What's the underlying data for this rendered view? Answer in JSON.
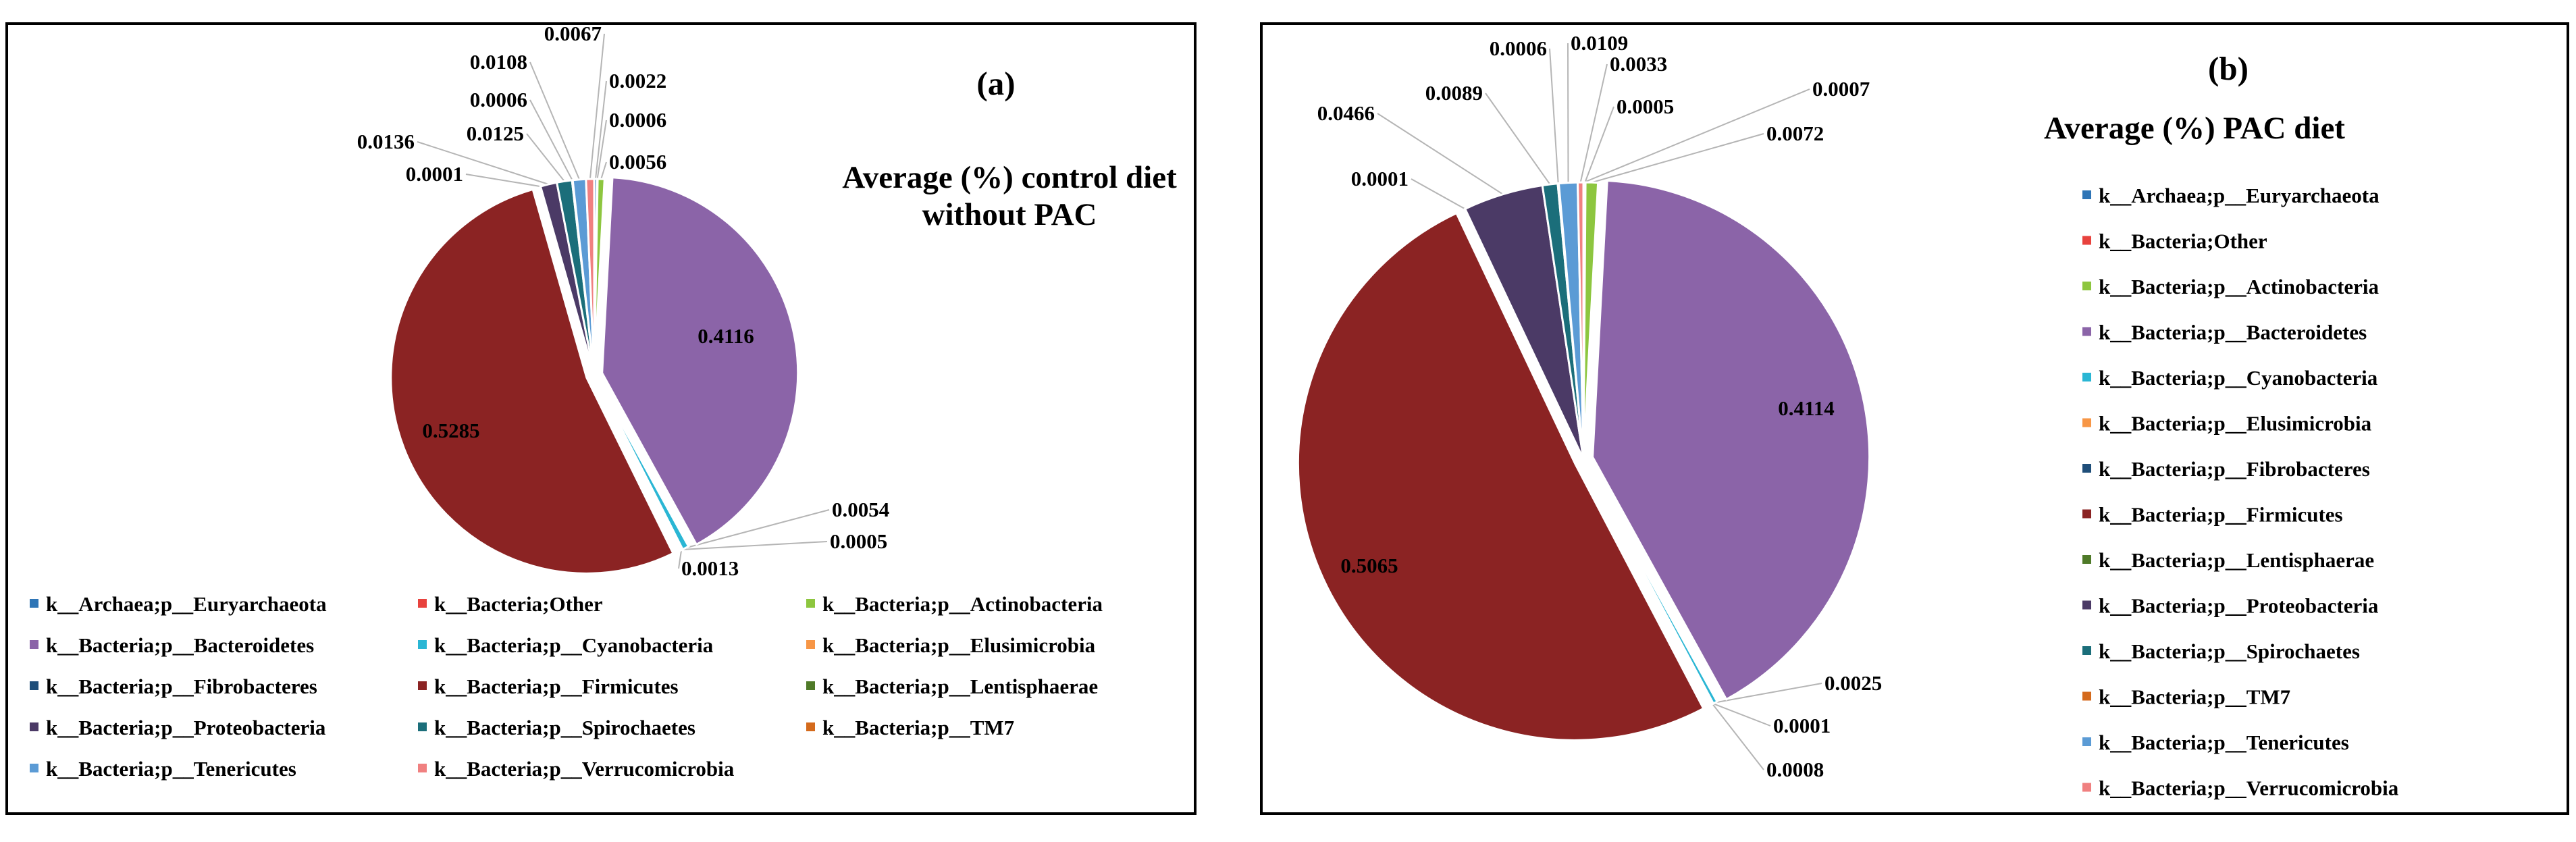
{
  "chart_data": [
    {
      "type": "pie",
      "panel_label": "(a)",
      "title": [
        "Average (%) control diet",
        "without PAC"
      ],
      "slices": [
        {
          "label": "k__Archaea;p__Euryarchaeota",
          "value": 0.0022,
          "display": "0.0022",
          "color": "#2e75b6"
        },
        {
          "label": "k__Bacteria;Other",
          "value": 0.0006,
          "display": "0.0006",
          "color": "#e8423d"
        },
        {
          "label": "k__Bacteria;p__Actinobacteria",
          "value": 0.0056,
          "display": "0.0056",
          "color": "#8dc63f"
        },
        {
          "label": "k__Bacteria;p__Bacteroidetes",
          "value": 0.4116,
          "display": "0.4116",
          "color": "#8b64a8"
        },
        {
          "label": "k__Bacteria;p__Cyanobacteria",
          "value": 0.0054,
          "display": "0.0054",
          "color": "#2ab6d4"
        },
        {
          "label": "k__Bacteria;p__Elusimicrobia",
          "value": 0.0005,
          "display": "0.0005",
          "color": "#f79646"
        },
        {
          "label": "k__Bacteria;p__Fibrobacteres",
          "value": 0.0013,
          "display": "0.0013",
          "color": "#1f4e79"
        },
        {
          "label": "k__Bacteria;p__Firmicutes",
          "value": 0.5285,
          "display": "0.5285",
          "color": "#8b2323"
        },
        {
          "label": "k__Bacteria;p__Lentisphaerae",
          "value": 0.0001,
          "display": "0.0001",
          "color": "#4f7a28"
        },
        {
          "label": "k__Bacteria;p__Proteobacteria",
          "value": 0.0136,
          "display": "0.0136",
          "color": "#4b3a66"
        },
        {
          "label": "k__Bacteria;p__Spirochaetes",
          "value": 0.0125,
          "display": "0.0125",
          "color": "#1b6e7a"
        },
        {
          "label": "k__Bacteria;p__TM7",
          "value": 0.0006,
          "display": "0.0006",
          "color": "#d46a1c"
        },
        {
          "label": "k__Bacteria;p__Tenericutes",
          "value": 0.0108,
          "display": "0.0108",
          "color": "#5b9bd5"
        },
        {
          "label": "k__Bacteria;p__Verrucomicrobia",
          "value": 0.0067,
          "display": "0.0067",
          "color": "#f08080"
        }
      ],
      "legend_position": "bottom"
    },
    {
      "type": "pie",
      "panel_label": "(b)",
      "title": [
        "Average (%) PAC diet"
      ],
      "slices": [
        {
          "label": "k__Archaea;p__Euryarchaeota",
          "value": 0.0007,
          "display": "0.0007",
          "color": "#2e75b6"
        },
        {
          "label": "k__Bacteria;Other",
          "value": 0.0005,
          "display": "0.0005",
          "color": "#e8423d"
        },
        {
          "label": "k__Bacteria;p__Actinobacteria",
          "value": 0.0072,
          "display": "0.0072",
          "color": "#8dc63f"
        },
        {
          "label": "k__Bacteria;p__Bacteroidetes",
          "value": 0.4114,
          "display": "0.4114",
          "color": "#8b64a8"
        },
        {
          "label": "k__Bacteria;p__Cyanobacteria",
          "value": 0.0025,
          "display": "0.0025",
          "color": "#2ab6d4"
        },
        {
          "label": "k__Bacteria;p__Elusimicrobia",
          "value": 0.0001,
          "display": "0.0001",
          "color": "#f79646"
        },
        {
          "label": "k__Bacteria;p__Fibrobacteres",
          "value": 0.0008,
          "display": "0.0008",
          "color": "#1f4e79"
        },
        {
          "label": "k__Bacteria;p__Firmicutes",
          "value": 0.5065,
          "display": "0.5065",
          "color": "#8b2323"
        },
        {
          "label": "k__Bacteria;p__Lentisphaerae",
          "value": 0.0001,
          "display": "0.0001",
          "color": "#4f7a28"
        },
        {
          "label": "k__Bacteria;p__Proteobacteria",
          "value": 0.0466,
          "display": "0.0466",
          "color": "#4b3a66"
        },
        {
          "label": "k__Bacteria;p__Spirochaetes",
          "value": 0.0089,
          "display": "0.0089",
          "color": "#1b6e7a"
        },
        {
          "label": "k__Bacteria;p__TM7",
          "value": 0.0006,
          "display": "0.0006",
          "color": "#d46a1c"
        },
        {
          "label": "k__Bacteria;p__Tenericutes",
          "value": 0.0109,
          "display": "0.0109",
          "color": "#5b9bd5"
        },
        {
          "label": "k__Bacteria;p__Verrucomicrobia",
          "value": 0.0033,
          "display": "0.0033",
          "color": "#f08080"
        }
      ],
      "legend_position": "right"
    }
  ]
}
